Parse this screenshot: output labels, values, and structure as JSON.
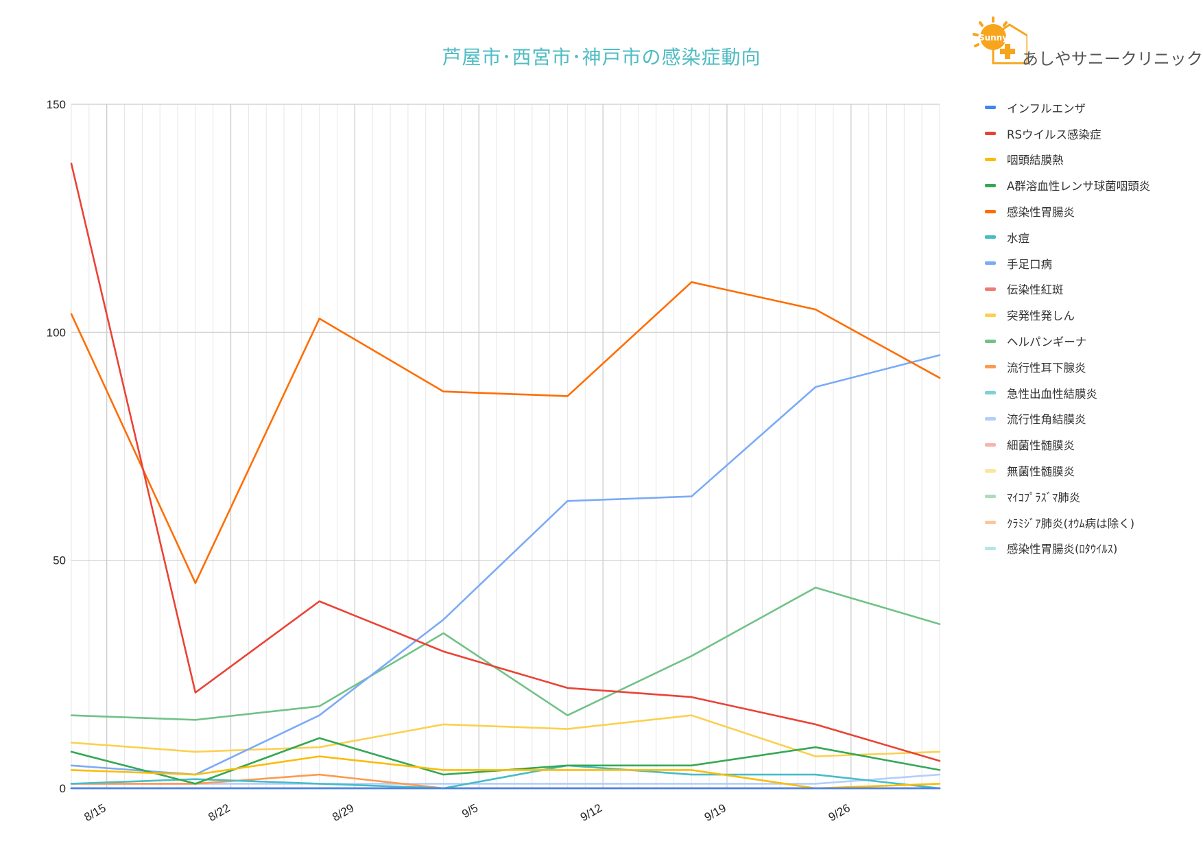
{
  "logo": {
    "brand_text": "あしやサニークリニック",
    "badge_text": "Sunny",
    "icon": "sunny-house-logo"
  },
  "chart_data": {
    "type": "line",
    "title": "芦屋市･西宮市･神戸市の感染症動向",
    "xlabel": "",
    "ylabel": "",
    "ylim": [
      0,
      150
    ],
    "yticks": [
      0,
      50,
      100,
      150
    ],
    "grid": true,
    "legend_position": "right",
    "x_dates": [
      "8/13",
      "8/20",
      "8/27",
      "9/3",
      "9/10",
      "9/17",
      "9/24",
      "10/1"
    ],
    "x_tick_labels": [
      "8/15",
      "8/22",
      "8/29",
      "9/5",
      "9/12",
      "9/19",
      "9/26"
    ],
    "series": [
      {
        "name": "インフルエンザ",
        "color": "#4285f4",
        "values": [
          0,
          0,
          0,
          0,
          0,
          0,
          0,
          0
        ]
      },
      {
        "name": "RSウイルス感染症",
        "color": "#ea4335",
        "values": [
          137,
          21,
          41,
          30,
          22,
          20,
          14,
          6
        ]
      },
      {
        "name": "咽頭結膜熱",
        "color": "#fbbc04",
        "values": [
          4,
          3,
          7,
          4,
          4,
          4,
          0,
          1
        ]
      },
      {
        "name": "A群溶血性レンサ球菌咽頭炎",
        "color": "#34a853",
        "values": [
          8,
          1,
          11,
          3,
          5,
          5,
          9,
          4
        ]
      },
      {
        "name": "感染性胃腸炎",
        "color": "#ff6d01",
        "values": [
          104,
          45,
          103,
          87,
          86,
          111,
          105,
          90
        ]
      },
      {
        "name": "水痘",
        "color": "#46bdc6",
        "values": [
          1,
          2,
          1,
          0,
          5,
          3,
          3,
          0
        ]
      },
      {
        "name": "手足口病",
        "color": "#7baaf7",
        "values": [
          5,
          3,
          16,
          37,
          63,
          64,
          88,
          95
        ]
      },
      {
        "name": "伝染性紅斑",
        "color": "#f07b72",
        "values": [
          0,
          0,
          0,
          0,
          0,
          0,
          0,
          0
        ]
      },
      {
        "name": "突発性発しん",
        "color": "#fcd04f",
        "values": [
          10,
          8,
          9,
          14,
          13,
          16,
          7,
          8
        ]
      },
      {
        "name": "ヘルパンギーナ",
        "color": "#71c287",
        "values": [
          16,
          15,
          18,
          34,
          16,
          29,
          44,
          36
        ]
      },
      {
        "name": "流行性耳下腺炎",
        "color": "#ff994d",
        "values": [
          1,
          1,
          3,
          0,
          0,
          0,
          0,
          0
        ]
      },
      {
        "name": "急性出血性結膜炎",
        "color": "#7ed1d7",
        "values": [
          0,
          0,
          0,
          0,
          0,
          0,
          0,
          0
        ]
      },
      {
        "name": "流行性角結膜炎",
        "color": "#b3cefb",
        "values": [
          1,
          1,
          1,
          1,
          1,
          1,
          1,
          3
        ]
      },
      {
        "name": "細菌性髄膜炎",
        "color": "#f7b4ae",
        "values": [
          0,
          0,
          0,
          0,
          0,
          0,
          0,
          0
        ]
      },
      {
        "name": "無菌性髄膜炎",
        "color": "#fde49b",
        "values": [
          0,
          0,
          0,
          0,
          0,
          0,
          0,
          0
        ]
      },
      {
        "name": "ﾏｲｺﾌﾟﾗｽﾞﾏ肺炎",
        "color": "#aedcba",
        "values": [
          0,
          0,
          0,
          0,
          0,
          0,
          0,
          0
        ]
      },
      {
        "name": "ｸﾗﾐｼﾞｱ肺炎(ｵｳﾑ病は除く)",
        "color": "#ffc599",
        "values": [
          0,
          0,
          0,
          0,
          0,
          0,
          0,
          0
        ]
      },
      {
        "name": "感染性胃腸炎(ﾛﾀｳｲﾙｽ)",
        "color": "#b5e5e8",
        "values": [
          0,
          0,
          0,
          0,
          0,
          0,
          0,
          0
        ]
      }
    ]
  }
}
